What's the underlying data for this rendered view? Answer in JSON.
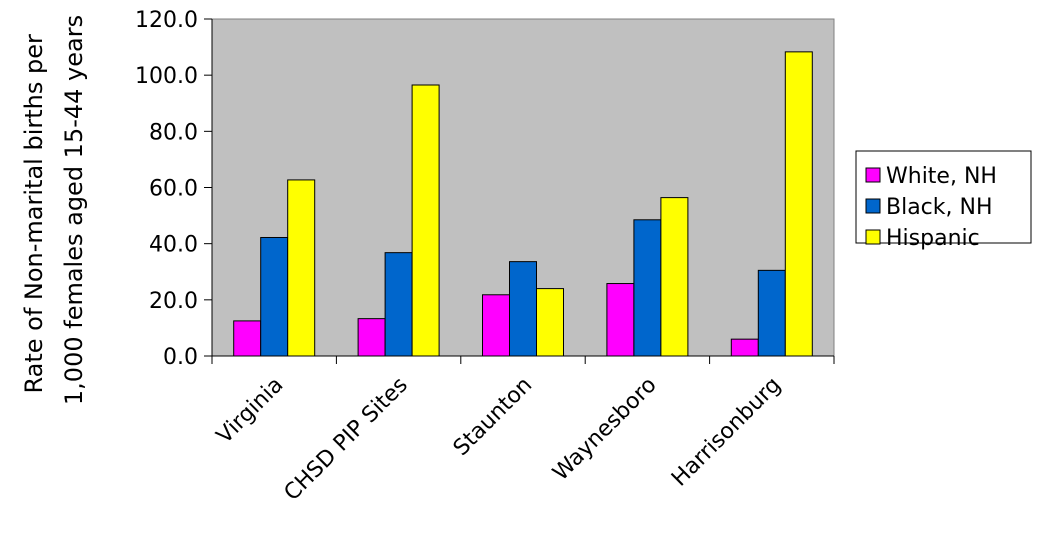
{
  "chart_data": {
    "type": "bar",
    "title": "",
    "ylabel_lines": [
      "Rate of Non-marital births per",
      "1,000 females aged 15-44 years"
    ],
    "xlabel": "",
    "categories": [
      "Virginia",
      "CHSD PIP Sites",
      "Staunton",
      "Waynesboro",
      "Harrisonburg"
    ],
    "series": [
      {
        "name": "White, NH",
        "color": "#ff00ff",
        "values": [
          12.5,
          13.3,
          21.8,
          25.8,
          6.0
        ]
      },
      {
        "name": "Black, NH",
        "color": "#0066cc",
        "values": [
          42.2,
          36.8,
          33.6,
          48.5,
          30.5
        ]
      },
      {
        "name": "Hispanic",
        "color": "#ffff00",
        "values": [
          62.7,
          96.5,
          24.0,
          56.4,
          108.3
        ]
      }
    ],
    "ylim": [
      0,
      120
    ],
    "yticks": [
      "0.0",
      "20.0",
      "40.0",
      "60.0",
      "80.0",
      "100.0",
      "120.0"
    ],
    "plot_background": "#c0c0c0",
    "grid": false,
    "legend_position": "right"
  }
}
